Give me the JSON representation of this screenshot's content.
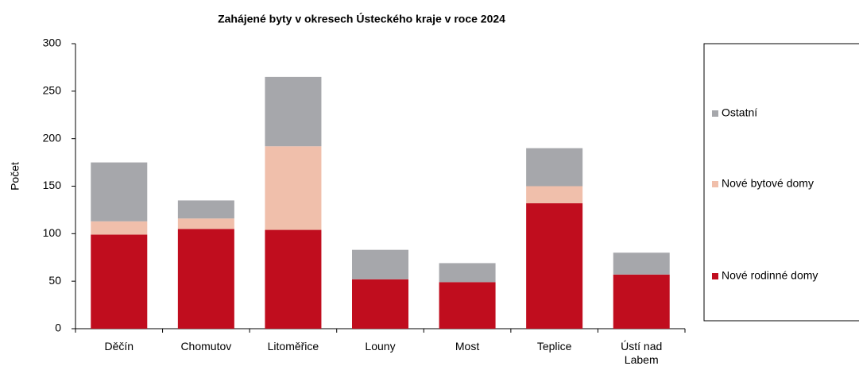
{
  "chart_data": {
    "type": "stacked_bar",
    "title": "Zahájené byty v okresech Ústeckého kraje v roce 2024",
    "y_label": "Počet",
    "categories": [
      "Děčín",
      "Chomutov",
      "Litoměřice",
      "Louny",
      "Most",
      "Teplice",
      "Ústí nad Labem"
    ],
    "series": [
      {
        "name": "Nové rodinné domy",
        "color": "#c00d1e",
        "values": [
          99,
          105,
          104,
          52,
          49,
          132,
          57
        ]
      },
      {
        "name": "Nové bytové domy",
        "color": "#f0bfab",
        "values": [
          14,
          11,
          88,
          0,
          0,
          18,
          0
        ]
      },
      {
        "name": "Ostatní",
        "color": "#a6a7ab",
        "values": [
          62,
          19,
          73,
          31,
          20,
          40,
          23
        ]
      }
    ],
    "ylim": [
      0,
      300
    ],
    "yticks": [
      0,
      50,
      100,
      150,
      200,
      250,
      300
    ],
    "grid": false
  }
}
